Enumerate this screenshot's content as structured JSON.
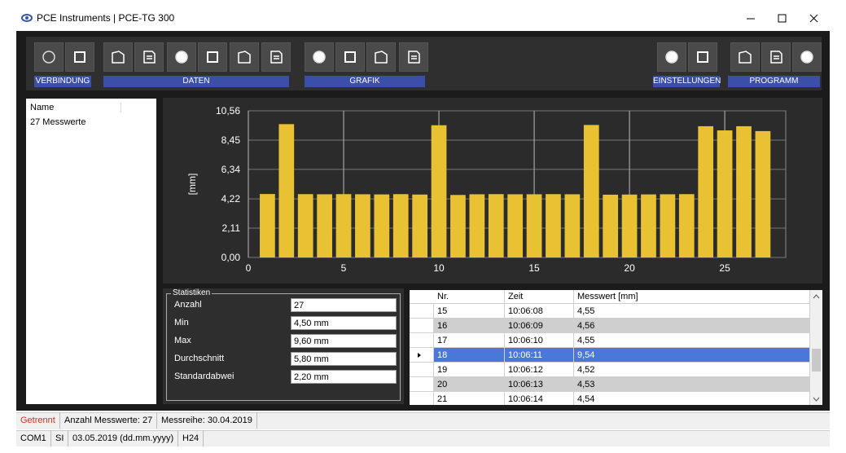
{
  "window": {
    "title": "PCE Instruments | PCE-TG 300"
  },
  "toolbar": {
    "groups": [
      "VERBINDUNG",
      "DATEN",
      "GRAFIK",
      "EINSTELLUNGEN",
      "PROGRAMM"
    ]
  },
  "list": {
    "header": "Name",
    "items": [
      "27 Messwerte"
    ]
  },
  "chart_data": {
    "type": "bar",
    "ylabel": "[mm]",
    "x": [
      1,
      2,
      3,
      4,
      5,
      6,
      7,
      8,
      9,
      10,
      11,
      12,
      13,
      14,
      15,
      16,
      17,
      18,
      19,
      20,
      21,
      22,
      23,
      24,
      25,
      26,
      27
    ],
    "values": [
      4.57,
      9.6,
      4.56,
      4.55,
      4.56,
      4.55,
      4.54,
      4.56,
      4.53,
      9.52,
      4.5,
      4.55,
      4.56,
      4.55,
      4.55,
      4.56,
      4.55,
      9.54,
      4.52,
      4.53,
      4.54,
      4.55,
      4.56,
      9.45,
      9.15,
      9.45,
      9.1
    ],
    "color": "#e8c233",
    "xlim": [
      0,
      28.2
    ],
    "xticks": [
      0,
      5,
      10,
      15,
      20,
      25
    ],
    "ylim": [
      0,
      10.56
    ],
    "yticks": [
      {
        "value": 0,
        "label": "0,00"
      },
      {
        "value": 2.11,
        "label": "2,11"
      },
      {
        "value": 4.22,
        "label": "4,22"
      },
      {
        "value": 6.34,
        "label": "6,34"
      },
      {
        "value": 8.45,
        "label": "8,45"
      },
      {
        "value": 10.56,
        "label": "10,56"
      }
    ],
    "grid": true
  },
  "statistics": {
    "title": "Statistiken",
    "rows": [
      [
        "Anzahl",
        "27"
      ],
      [
        "Min",
        "4,50 mm"
      ],
      [
        "Max",
        "9,60 mm"
      ],
      [
        "Durchschnitt",
        "5,80 mm"
      ],
      [
        "Standardabwei",
        "2,20 mm"
      ]
    ]
  },
  "table": {
    "columns": [
      "Nr.",
      "Zeit",
      "Messwert [mm]"
    ],
    "rows": [
      [
        "15",
        "10:06:08",
        "4,55"
      ],
      [
        "16",
        "10:06:09",
        "4,56"
      ],
      [
        "17",
        "10:06:10",
        "4,55"
      ],
      [
        "18",
        "10:06:11",
        "9,54"
      ],
      [
        "19",
        "10:06:12",
        "4,52"
      ],
      [
        "20",
        "10:06:13",
        "4,53"
      ],
      [
        "21",
        "10:06:14",
        "4,54"
      ]
    ]
  },
  "status": {
    "line1": [
      "Getrennt",
      "Anzahl Messwerte: 27",
      "Messreihe: 30.04.2019"
    ],
    "line2": [
      "COM1",
      "SI",
      "03.05.2019 (dd.mm.yyyy)",
      "H24"
    ]
  }
}
